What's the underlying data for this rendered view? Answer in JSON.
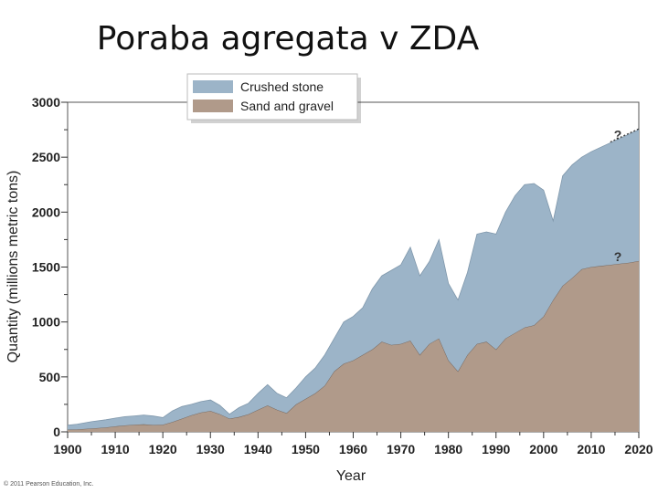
{
  "slide": {
    "title": "Poraba agregata v ZDA"
  },
  "copyright": "© 2011 Pearson Education, Inc.",
  "chart_data": {
    "type": "area",
    "stacked": true,
    "title": "",
    "xlabel": "Year",
    "ylabel": "Quantity (millions metric tons)",
    "xlim": [
      1900,
      2020
    ],
    "ylim": [
      0,
      3000
    ],
    "x_ticks": [
      1900,
      1910,
      1920,
      1930,
      1940,
      1950,
      1960,
      1970,
      1980,
      1990,
      2000,
      2010,
      2020
    ],
    "y_ticks": [
      0,
      500,
      1000,
      1500,
      2000,
      2500,
      3000
    ],
    "legend_position": "top-center",
    "grid": false,
    "projection_marker": "?",
    "projection_start": 2013,
    "x": [
      1900,
      1902,
      1905,
      1908,
      1910,
      1912,
      1914,
      1916,
      1918,
      1920,
      1922,
      1924,
      1926,
      1928,
      1930,
      1932,
      1934,
      1936,
      1938,
      1940,
      1942,
      1944,
      1946,
      1948,
      1950,
      1952,
      1954,
      1956,
      1958,
      1960,
      1962,
      1964,
      1966,
      1968,
      1970,
      1972,
      1974,
      1976,
      1978,
      1980,
      1982,
      1984,
      1986,
      1988,
      1990,
      1992,
      1994,
      1996,
      1998,
      2000,
      2002,
      2004,
      2006,
      2008,
      2010,
      2012,
      2014,
      2016,
      2018,
      2020
    ],
    "series": [
      {
        "name": "Sand and gravel",
        "color": "#b09a8a",
        "values": [
          20,
          22,
          30,
          40,
          50,
          58,
          65,
          68,
          62,
          65,
          90,
          120,
          150,
          175,
          190,
          160,
          120,
          135,
          160,
          200,
          240,
          200,
          170,
          250,
          300,
          350,
          420,
          550,
          620,
          650,
          700,
          750,
          820,
          790,
          800,
          830,
          700,
          800,
          850,
          650,
          550,
          700,
          800,
          820,
          750,
          850,
          900,
          950,
          970,
          1050,
          1200,
          1330,
          1400,
          1480,
          1500,
          1510,
          1520,
          1530,
          1540,
          1555
        ]
      },
      {
        "name": "Crushed stone",
        "color": "#9cb4c8",
        "values": [
          40,
          48,
          62,
          70,
          75,
          80,
          80,
          85,
          82,
          65,
          100,
          110,
          100,
          100,
          100,
          80,
          40,
          85,
          100,
          150,
          190,
          150,
          140,
          150,
          200,
          230,
          280,
          300,
          380,
          400,
          430,
          550,
          600,
          680,
          720,
          850,
          720,
          750,
          900,
          700,
          650,
          750,
          1000,
          1000,
          1050,
          1150,
          1250,
          1300,
          1290,
          1150,
          720,
          1000,
          1030,
          1020,
          1050,
          1080,
          1110,
          1140,
          1170,
          1195
        ]
      }
    ]
  }
}
